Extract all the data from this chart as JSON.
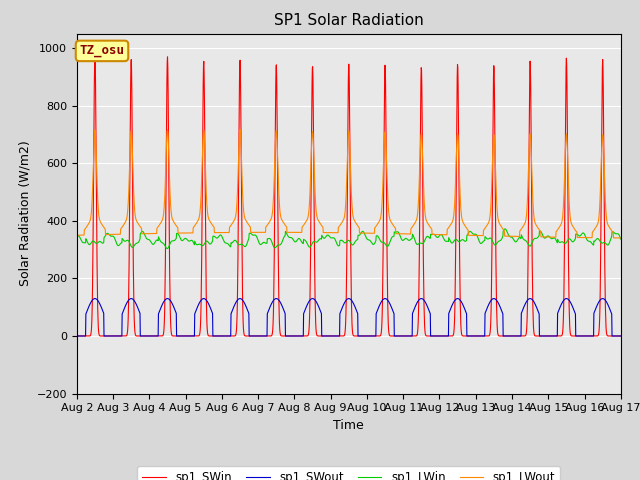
{
  "title": "SP1 Solar Radiation",
  "xlabel": "Time",
  "ylabel": "Solar Radiation (W/m2)",
  "ylim": [
    -200,
    1050
  ],
  "yticks": [
    -200,
    0,
    200,
    400,
    600,
    800,
    1000
  ],
  "n_days": 15,
  "xtick_labels": [
    "Aug 2",
    "Aug 3",
    "Aug 4",
    "Aug 5",
    "Aug 6",
    "Aug 7",
    "Aug 8",
    "Aug 9",
    "Aug 10",
    "Aug 11",
    "Aug 12",
    "Aug 13",
    "Aug 14",
    "Aug 15",
    "Aug 16",
    "Aug 17"
  ],
  "colors": {
    "SWin": "#ff0000",
    "SWout": "#0000cc",
    "LWin": "#00cc00",
    "LWout": "#ff8800"
  },
  "legend_labels": [
    "sp1_SWin",
    "sp1_SWout",
    "sp1_LWin",
    "sp1_LWout"
  ],
  "annotation_text": "TZ_osu",
  "annotation_bg": "#ffff99",
  "annotation_edge": "#cc8800",
  "plot_bg": "#e8e8e8",
  "grid_color": "#ffffff",
  "title_fontsize": 11,
  "axis_fontsize": 9,
  "tick_fontsize": 8,
  "SWin_peaks": [
    980,
    960,
    970,
    955,
    960,
    945,
    940,
    950,
    945,
    935,
    945,
    940,
    955,
    965,
    960
  ],
  "SWout_max": 130,
  "LWin_base": 340,
  "LWout_base": 350,
  "LWout_peak_scale": 0.3
}
